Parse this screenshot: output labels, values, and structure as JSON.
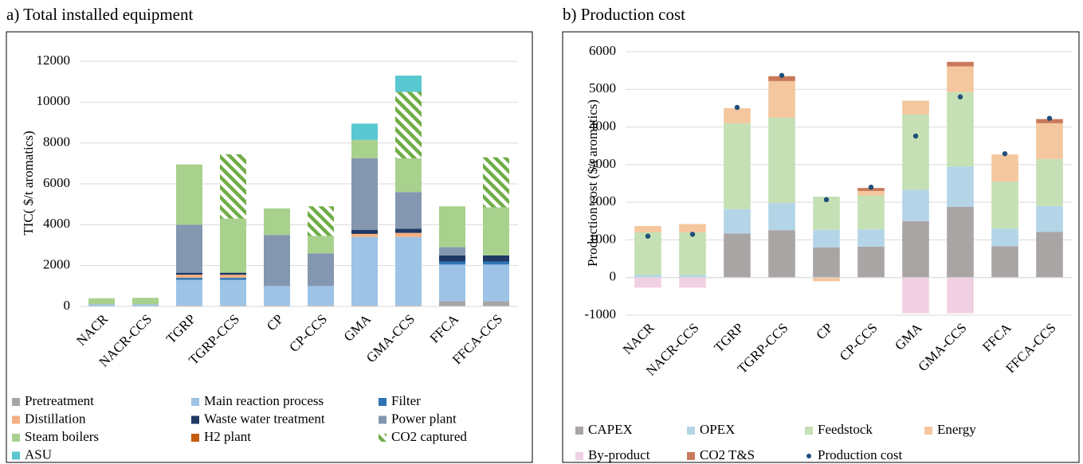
{
  "chart_data": [
    {
      "type": "stacked_bar",
      "title": "a) Total installed equipment",
      "y_label": "TIC( $/t aromatics)",
      "categories": [
        "NACR",
        "NACR-CCS",
        "TGRP",
        "TGRP-CCS",
        "CP",
        "CP-CCS",
        "GMA",
        "GMA-CCS",
        "FFCA",
        "FFCA-CCS"
      ],
      "ylim": [
        0,
        12000
      ],
      "yticks": [
        0,
        2000,
        4000,
        6000,
        8000,
        10000,
        12000
      ],
      "grid": true,
      "series": [
        {
          "name": "Pretreatment",
          "color": "#a6a6a6",
          "values": [
            0,
            0,
            50,
            50,
            50,
            50,
            50,
            50,
            250,
            250
          ]
        },
        {
          "name": "Main reaction process",
          "color": "#9dc3e6",
          "values": [
            100,
            100,
            1250,
            1250,
            950,
            950,
            3350,
            3350,
            1800,
            1800
          ]
        },
        {
          "name": "Filter",
          "color": "#2e75b6",
          "values": [
            0,
            0,
            100,
            100,
            0,
            0,
            0,
            0,
            150,
            150
          ]
        },
        {
          "name": "Distillation",
          "color": "#f4b183",
          "values": [
            0,
            0,
            150,
            150,
            0,
            0,
            150,
            200,
            0,
            0
          ]
        },
        {
          "name": "Waste water treatment",
          "color": "#1f3864",
          "values": [
            0,
            0,
            100,
            100,
            0,
            0,
            200,
            200,
            300,
            300
          ]
        },
        {
          "name": "Power plant",
          "color": "#8497b0",
          "values": [
            0,
            0,
            2350,
            0,
            2500,
            1600,
            3500,
            1800,
            400,
            0
          ]
        },
        {
          "name": "Steam boilers",
          "color": "#a9d18e",
          "values": [
            300,
            320,
            2950,
            2650,
            1300,
            850,
            900,
            1650,
            2000,
            2350
          ]
        },
        {
          "name": "H2 plant",
          "color": "#c55a11",
          "values": [
            0,
            0,
            0,
            0,
            0,
            0,
            0,
            0,
            0,
            0
          ]
        },
        {
          "name": "CO2 captured",
          "color": "#70ad47",
          "pattern": "hatch",
          "values": [
            0,
            0,
            0,
            3150,
            0,
            1450,
            0,
            3250,
            0,
            2450
          ]
        },
        {
          "name": "ASU",
          "color": "#5ac8d0",
          "values": [
            0,
            0,
            0,
            0,
            0,
            0,
            800,
            800,
            0,
            0
          ]
        }
      ]
    },
    {
      "type": "stacked_bar",
      "title": "b) Production cost",
      "y_label": "Production cost ($/t aromatics)",
      "categories": [
        "NACR",
        "NACR-CCS",
        "TGRP",
        "TGRP-CCS",
        "CP",
        "CP-CCS",
        "GMA",
        "GMA-CCS",
        "FFCA",
        "FFCA-CCS"
      ],
      "ylim": [
        -1000,
        6000
      ],
      "yticks": [
        -1000,
        0,
        1000,
        2000,
        3000,
        4000,
        5000,
        6000
      ],
      "grid": true,
      "series": [
        {
          "name": "CAPEX",
          "color": "#aaa5a5",
          "values": [
            0,
            0,
            1170,
            1260,
            800,
            820,
            1500,
            1880,
            830,
            1210
          ]
        },
        {
          "name": "OPEX",
          "color": "#b4d5e8",
          "values": [
            70,
            70,
            650,
            720,
            470,
            460,
            830,
            1070,
            470,
            690
          ]
        },
        {
          "name": "Feedstock",
          "color": "#c5e0b4",
          "values": [
            1130,
            1130,
            2280,
            2270,
            880,
            900,
            2000,
            1980,
            1250,
            1250
          ]
        },
        {
          "name": "Energy",
          "color": "#f4c79e",
          "values": [
            170,
            220,
            400,
            970,
            -100,
            120,
            370,
            680,
            720,
            950
          ]
        },
        {
          "name": "By-product",
          "color": "#f1d0e3",
          "values": [
            -270,
            -270,
            0,
            0,
            0,
            0,
            -950,
            -950,
            0,
            0
          ]
        },
        {
          "name": "CO2 T&S",
          "color": "#c9795a",
          "values": [
            0,
            0,
            0,
            130,
            0,
            80,
            0,
            120,
            0,
            110
          ]
        }
      ],
      "points": {
        "name": "Production cost",
        "color": "#1f4e79",
        "values": [
          1100,
          1150,
          4520,
          5370,
          2070,
          2400,
          3760,
          4800,
          3290,
          4230
        ]
      }
    }
  ]
}
